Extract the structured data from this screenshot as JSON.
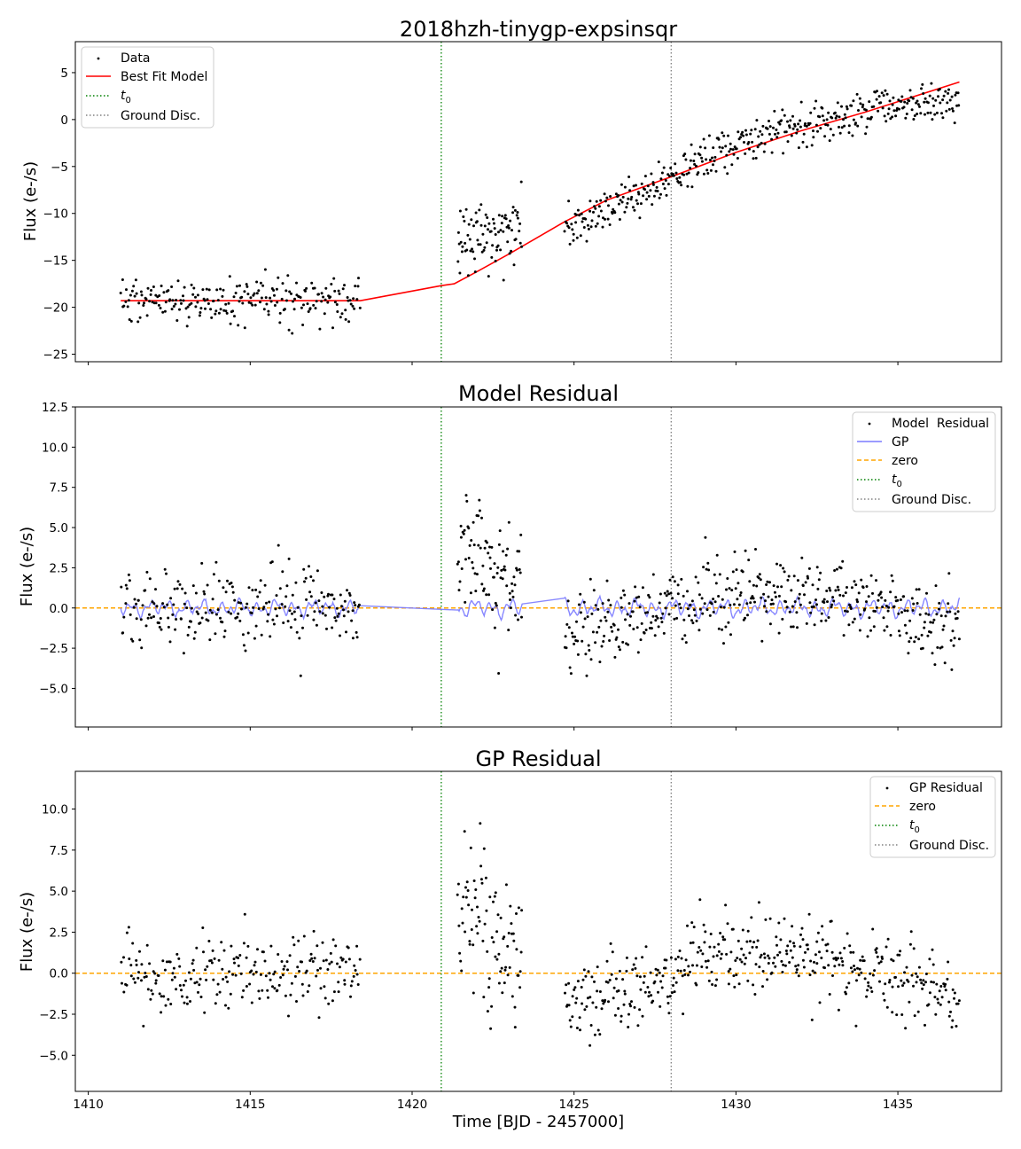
{
  "figure": {
    "xlabel": "Time [BJD - 2457000]"
  },
  "colors": {
    "data": "#000000",
    "model": "#ff0000",
    "gp": "#7a7aff",
    "zero": "#ffa500",
    "t0": "#008000",
    "ground": "#808080"
  },
  "chart_data": [
    {
      "type": "scatter",
      "title": "2018hzh-tinygp-expsinsqr",
      "xlabel": "",
      "ylabel": "Flux (e-/s)",
      "xlim": [
        1409.6,
        1438.2
      ],
      "ylim": [
        -25.8,
        8.3
      ],
      "yticks": [
        -25,
        -20,
        -15,
        -10,
        -5,
        0,
        5
      ],
      "xticks": [
        1410,
        1415,
        1420,
        1425,
        1430,
        1435
      ],
      "show_xticklabels": false,
      "vlines": {
        "t0": 1420.9,
        "ground": 1428.0
      },
      "legend": {
        "position": "top-left",
        "entries": [
          "Data",
          "Best Fit Model",
          "t0",
          "Ground Disc."
        ]
      },
      "series": [
        {
          "name": "Data",
          "kind": "points",
          "segments": [
            {
              "x0": 1411.0,
              "x1": 1418.4,
              "base": [
                [
                  1411.0,
                  -19.3
                ],
                [
                  1418.4,
                  -19.3
                ]
              ],
              "sd": 1.2,
              "n": 230
            },
            {
              "x0": 1421.4,
              "x1": 1423.4,
              "base": [
                [
                  1421.4,
                  -13.0
                ],
                [
                  1422.2,
                  -12.5
                ],
                [
                  1423.0,
                  -12.0
                ],
                [
                  1423.4,
                  -11.0
                ]
              ],
              "sd": 2.2,
              "n": 90
            },
            {
              "x0": 1424.7,
              "x1": 1436.9,
              "base": [
                [
                  1424.7,
                  -12.0
                ],
                [
                  1425.5,
                  -10.5
                ],
                [
                  1427.0,
                  -8.0
                ],
                [
                  1428.0,
                  -6.2
                ],
                [
                  1429.5,
                  -3.5
                ],
                [
                  1431.0,
                  -1.5
                ],
                [
                  1433.0,
                  0.2
                ],
                [
                  1434.8,
                  1.5
                ],
                [
                  1436.9,
                  1.8
                ]
              ],
              "sd": 1.1,
              "n": 430
            }
          ]
        },
        {
          "name": "Best Fit Model",
          "kind": "line",
          "points": [
            [
              1411.0,
              -19.3
            ],
            [
              1418.4,
              -19.3
            ],
            [
              1420.9,
              -17.7
            ],
            [
              1421.3,
              -17.5
            ],
            [
              1422.0,
              -16.2
            ],
            [
              1423.0,
              -14.3
            ],
            [
              1424.7,
              -10.9
            ],
            [
              1426.0,
              -8.6
            ],
            [
              1428.0,
              -6.1
            ],
            [
              1430.0,
              -3.5
            ],
            [
              1432.0,
              -1.2
            ],
            [
              1434.0,
              0.8
            ],
            [
              1436.9,
              4.0
            ]
          ]
        }
      ]
    },
    {
      "type": "scatter",
      "title": "Model Residual",
      "xlabel": "",
      "ylabel": "Flux (e-/s)",
      "xlim": [
        1409.6,
        1438.2
      ],
      "ylim": [
        -7.4,
        12.5
      ],
      "yticks": [
        -5.0,
        -2.5,
        0.0,
        2.5,
        5.0,
        7.5,
        10.0,
        12.5
      ],
      "xticks": [
        1410,
        1415,
        1420,
        1425,
        1430,
        1435
      ],
      "show_xticklabels": false,
      "hline": 0,
      "vlines": {
        "t0": 1420.9,
        "ground": 1428.0
      },
      "legend": {
        "position": "top-right",
        "entries": [
          "Model  Residual",
          "GP",
          "zero",
          "t0",
          "Ground Disc."
        ]
      },
      "series": [
        {
          "name": "Model  Residual",
          "kind": "points",
          "segments": [
            {
              "x0": 1411.0,
              "x1": 1418.4,
              "base": [
                [
                  1411.0,
                  0.1
                ],
                [
                  1418.4,
                  0.1
                ]
              ],
              "sd": 1.2,
              "n": 230
            },
            {
              "x0": 1421.4,
              "x1": 1423.4,
              "base": [
                [
                  1421.4,
                  3.0
                ],
                [
                  1422.0,
                  4.0
                ],
                [
                  1422.6,
                  2.0
                ],
                [
                  1423.0,
                  2.0
                ],
                [
                  1423.4,
                  1.0
                ]
              ],
              "sd": 2.0,
              "n": 90
            },
            {
              "x0": 1424.7,
              "x1": 1436.9,
              "base": [
                [
                  1424.7,
                  -1.8
                ],
                [
                  1426.0,
                  -1.2
                ],
                [
                  1427.5,
                  -0.5
                ],
                [
                  1429.0,
                  0.6
                ],
                [
                  1430.5,
                  1.0
                ],
                [
                  1432.5,
                  0.8
                ],
                [
                  1434.5,
                  0.0
                ],
                [
                  1436.9,
                  -1.6
                ]
              ],
              "sd": 1.2,
              "n": 430
            }
          ]
        },
        {
          "name": "GP",
          "kind": "wiggle",
          "segments": [
            {
              "x0": 1411.0,
              "x1": 1418.4,
              "amp": 0.45
            },
            {
              "x0": 1421.4,
              "x1": 1423.4,
              "amp": 0.5
            },
            {
              "x0": 1424.7,
              "x1": 1436.9,
              "amp": 0.5
            }
          ]
        },
        {
          "name": "zero",
          "kind": "hline",
          "y": 0
        }
      ]
    },
    {
      "type": "scatter",
      "title": "GP Residual",
      "xlabel": "Time [BJD - 2457000]",
      "ylabel": "Flux (e-/s)",
      "xlim": [
        1409.6,
        1438.2
      ],
      "ylim": [
        -7.2,
        12.3
      ],
      "yticks": [
        -5.0,
        -2.5,
        0.0,
        2.5,
        5.0,
        7.5,
        10.0
      ],
      "xticks": [
        1410,
        1415,
        1420,
        1425,
        1430,
        1435
      ],
      "xticklabels": [
        "1410",
        "1415",
        "1420",
        "1425",
        "1430",
        "1435"
      ],
      "show_xticklabels": true,
      "hline": 0,
      "vlines": {
        "t0": 1420.9,
        "ground": 1428.0
      },
      "legend": {
        "position": "top-right",
        "entries": [
          "GP Residual",
          "zero",
          "t0",
          "Ground Disc."
        ]
      },
      "series": [
        {
          "name": "GP Residual",
          "kind": "points",
          "segments": [
            {
              "x0": 1411.0,
              "x1": 1418.4,
              "base": [
                [
                  1411.0,
                  0.0
                ],
                [
                  1418.4,
                  0.0
                ]
              ],
              "sd": 1.2,
              "n": 230
            },
            {
              "x0": 1421.4,
              "x1": 1423.4,
              "base": [
                [
                  1421.4,
                  3.0
                ],
                [
                  1422.0,
                  3.8
                ],
                [
                  1422.6,
                  2.0
                ],
                [
                  1423.0,
                  2.0
                ],
                [
                  1423.4,
                  1.0
                ]
              ],
              "sd": 2.0,
              "n": 90
            },
            {
              "x0": 1424.7,
              "x1": 1436.9,
              "base": [
                [
                  1424.7,
                  -1.8
                ],
                [
                  1426.0,
                  -1.2
                ],
                [
                  1427.5,
                  -0.5
                ],
                [
                  1429.0,
                  0.6
                ],
                [
                  1430.5,
                  1.0
                ],
                [
                  1432.5,
                  0.8
                ],
                [
                  1434.5,
                  0.0
                ],
                [
                  1436.9,
                  -1.6
                ]
              ],
              "sd": 1.25,
              "n": 430
            }
          ]
        },
        {
          "name": "zero",
          "kind": "hline",
          "y": 0
        }
      ]
    }
  ]
}
